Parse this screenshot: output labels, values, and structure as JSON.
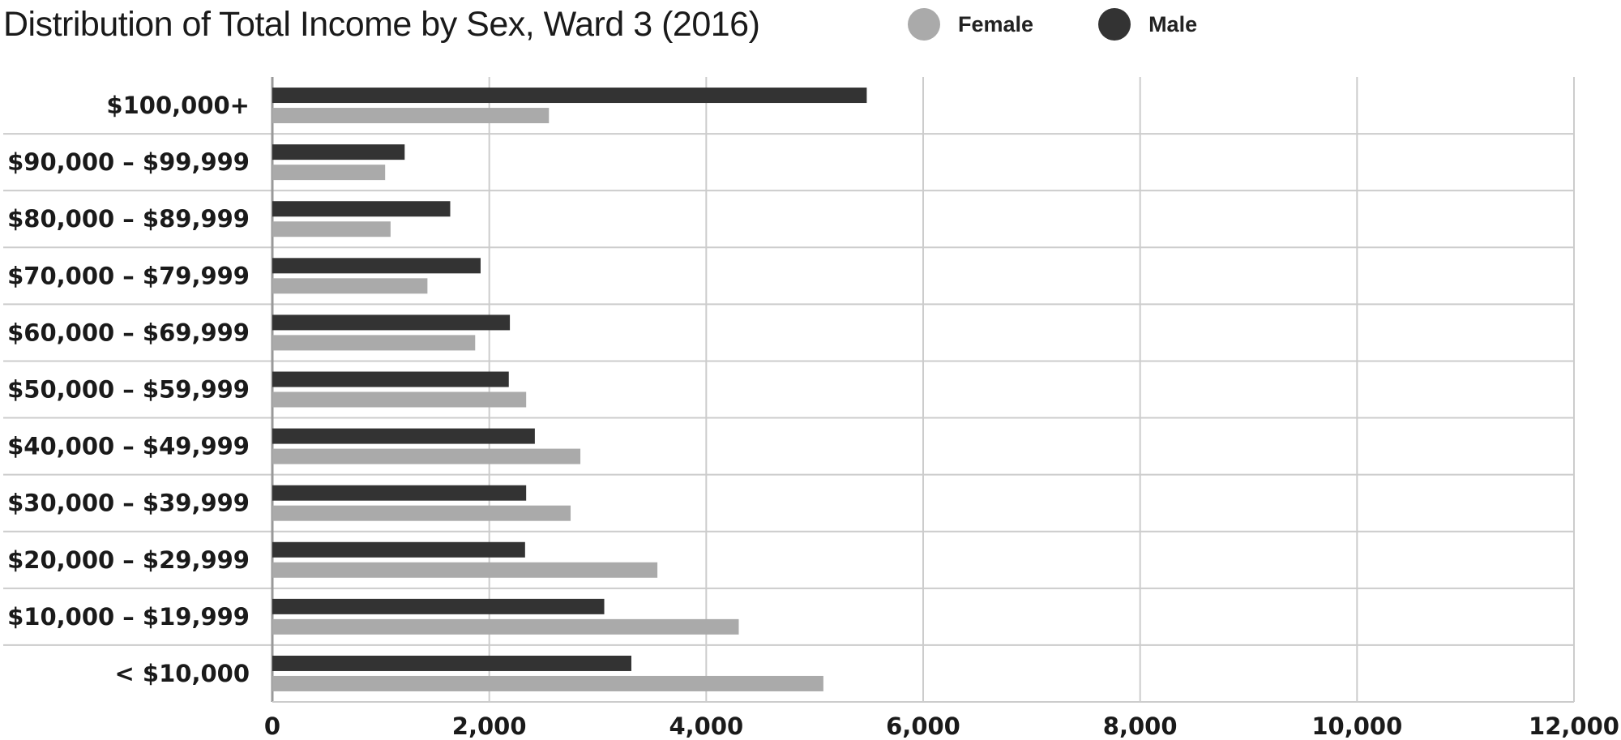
{
  "title": "Distribution of Total Income by Sex, Ward 3 (2016)",
  "colors": {
    "female": "#aaaaaa",
    "male": "#333333",
    "grid": "#cccccc",
    "axis": "#999999"
  },
  "legend": [
    {
      "label": "Female",
      "color": "#aaaaaa"
    },
    {
      "label": "Male",
      "color": "#333333"
    }
  ],
  "chart_data": {
    "type": "bar",
    "orientation": "horizontal",
    "title": "Distribution of Total Income by Sex, Ward 3 (2016)",
    "categories": [
      "$100,000+",
      "$90,000 – $99,999",
      "$80,000 – $89,999",
      "$70,000 – $79,999",
      "$60,000 – $69,999",
      "$50,000 – $59,999",
      "$40,000 – $49,999",
      "$30,000 – $39,999",
      "$20,000 – $29,999",
      "$10,000 – $19,999",
      "< $10,000"
    ],
    "series": [
      {
        "name": "Male",
        "color": "#333333",
        "values": [
          5480,
          1220,
          1640,
          1920,
          2190,
          2180,
          2420,
          2340,
          2330,
          3060,
          3310
        ]
      },
      {
        "name": "Female",
        "color": "#aaaaaa",
        "values": [
          2550,
          1040,
          1090,
          1430,
          1870,
          2340,
          2840,
          2750,
          3550,
          4300,
          5080
        ]
      }
    ],
    "xlim": [
      0,
      12000
    ],
    "xticks": [
      0,
      2000,
      4000,
      6000,
      8000,
      10000,
      12000
    ],
    "xtick_labels": [
      "0",
      "2,000",
      "4,000",
      "6,000",
      "8,000",
      "10,000",
      "12,000"
    ],
    "grid": true,
    "legend_position": "top"
  }
}
